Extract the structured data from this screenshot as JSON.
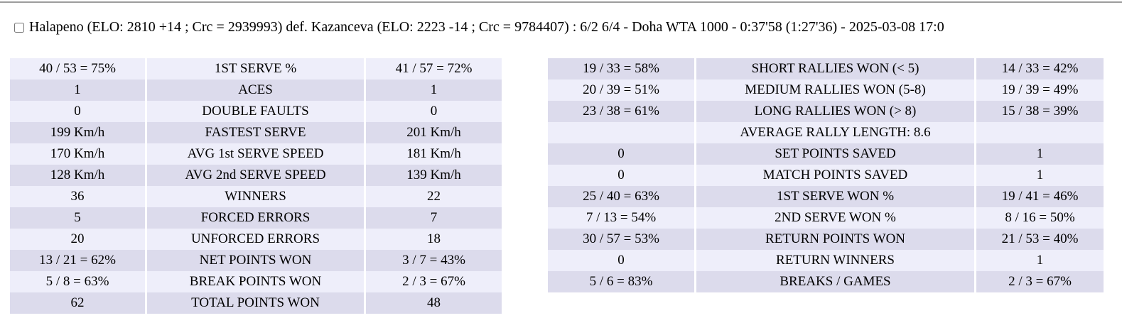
{
  "header": {
    "checkbox_checked": false,
    "match_summary": "Halapeno (ELO: 2810 +14 ; Crc = 2939993) def. Kazanceva (ELO: 2223 -14 ; Crc = 9784407) : 6/2 6/4 - Doha WTA 1000 - 0:37'58 (1:27'36) - 2025-03-08 17:0"
  },
  "colors": {
    "row_light": "#eeeefa",
    "row_dark": "#dcdbec",
    "divider": "#9d9d9d",
    "text": "#000000",
    "background": "#ffffff"
  },
  "stats_left": {
    "rows": [
      {
        "p1": "40 / 53 = 75%",
        "label": "1ST SERVE %",
        "p2": "41 / 57 = 72%"
      },
      {
        "p1": "1",
        "label": "ACES",
        "p2": "1"
      },
      {
        "p1": "0",
        "label": "DOUBLE FAULTS",
        "p2": "0"
      },
      {
        "p1": "199 Km/h",
        "label": "FASTEST SERVE",
        "p2": "201 Km/h"
      },
      {
        "p1": "170 Km/h",
        "label": "AVG 1st SERVE SPEED",
        "p2": "181 Km/h"
      },
      {
        "p1": "128 Km/h",
        "label": "AVG 2nd SERVE SPEED",
        "p2": "139 Km/h"
      },
      {
        "p1": "36",
        "label": "WINNERS",
        "p2": "22"
      },
      {
        "p1": "5",
        "label": "FORCED ERRORS",
        "p2": "7"
      },
      {
        "p1": "20",
        "label": "UNFORCED ERRORS",
        "p2": "18"
      },
      {
        "p1": "13 / 21 = 62%",
        "label": "NET POINTS WON",
        "p2": "3 / 7 = 43%"
      },
      {
        "p1": "5 / 8 = 63%",
        "label": "BREAK POINTS WON",
        "p2": "2 / 3 = 67%"
      },
      {
        "p1": "62",
        "label": "TOTAL POINTS WON",
        "p2": "48"
      }
    ]
  },
  "stats_right": {
    "rows": [
      {
        "p1": "19 / 33 = 58%",
        "label": "SHORT RALLIES WON (< 5)",
        "p2": "14 / 33 = 42%"
      },
      {
        "p1": "20 / 39 = 51%",
        "label": "MEDIUM RALLIES WON (5-8)",
        "p2": "19 / 39 = 49%"
      },
      {
        "p1": "23 / 38 = 61%",
        "label": "LONG RALLIES WON (> 8)",
        "p2": "15 / 38 = 39%"
      },
      {
        "p1": "",
        "label": "AVERAGE RALLY LENGTH: 8.6",
        "p2": ""
      },
      {
        "p1": "0",
        "label": "SET POINTS SAVED",
        "p2": "1"
      },
      {
        "p1": "0",
        "label": "MATCH POINTS SAVED",
        "p2": "1"
      },
      {
        "p1": "25 / 40 = 63%",
        "label": "1ST SERVE WON %",
        "p2": "19 / 41 = 46%"
      },
      {
        "p1": "7 / 13 = 54%",
        "label": "2ND SERVE WON %",
        "p2": "8 / 16 = 50%"
      },
      {
        "p1": "30 / 57 = 53%",
        "label": "RETURN POINTS WON",
        "p2": "21 / 53 = 40%"
      },
      {
        "p1": "0",
        "label": "RETURN WINNERS",
        "p2": "1"
      },
      {
        "p1": "5 / 6 = 83%",
        "label": "BREAKS / GAMES",
        "p2": "2 / 3 = 67%"
      }
    ]
  }
}
